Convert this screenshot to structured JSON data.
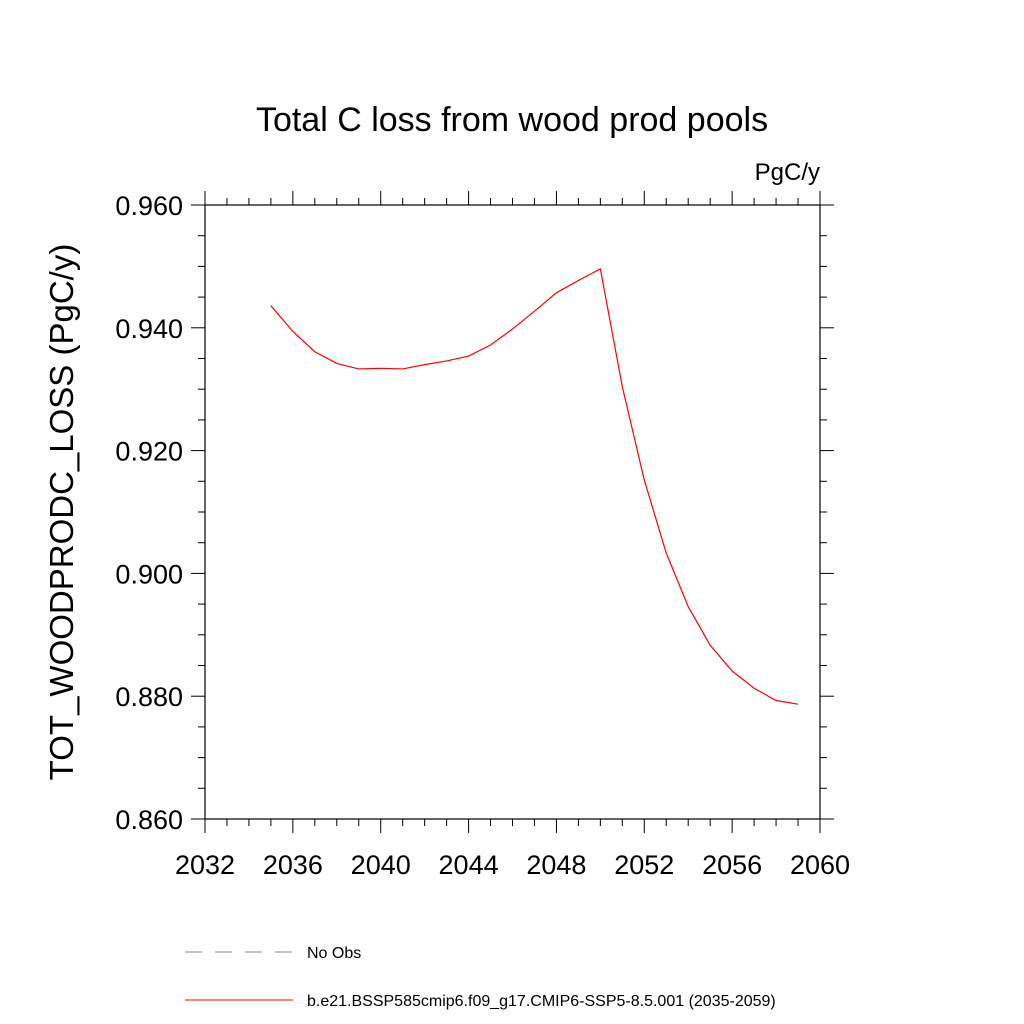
{
  "chart_data": {
    "type": "line",
    "title": "Total C loss from wood prod pools",
    "units_label": "PgC/y",
    "ylabel": "TOT_WOODPRODC_LOSS  (PgC/y)",
    "xlabel": "",
    "xlim": [
      2032,
      2060
    ],
    "ylim": [
      0.86,
      0.96
    ],
    "x_ticks": [
      "2032",
      "2036",
      "2040",
      "2044",
      "2048",
      "2052",
      "2056",
      "2060"
    ],
    "y_ticks": [
      "0.860",
      "0.880",
      "0.900",
      "0.920",
      "0.940",
      "0.960"
    ],
    "series": [
      {
        "name": "b.e21.BSSP585cmip6.f09_g17.CMIP6-SSP5-8.5.001 (2035-2059)",
        "color": "#ff0000",
        "x": [
          2035,
          2036,
          2037,
          2038,
          2039,
          2040,
          2041,
          2042,
          2043,
          2044,
          2045,
          2046,
          2047,
          2048,
          2049,
          2050,
          2051,
          2052,
          2053,
          2054,
          2055,
          2056,
          2057,
          2058,
          2059
        ],
        "y": [
          0.9436,
          0.9394,
          0.9361,
          0.9342,
          0.9333,
          0.9334,
          0.9333,
          0.934,
          0.9346,
          0.9354,
          0.9372,
          0.9398,
          0.9427,
          0.9457,
          0.9477,
          0.9496,
          0.9304,
          0.9152,
          0.9033,
          0.8946,
          0.8883,
          0.8841,
          0.8813,
          0.8793,
          0.8787
        ]
      }
    ],
    "legend": [
      {
        "label": "No Obs",
        "style": "dashed",
        "color": "#8080d0"
      },
      {
        "label": "b.e21.BSSP585cmip6.f09_g17.CMIP6-SSP5-8.5.001 (2035-2059)",
        "style": "solid",
        "color": "#ff0000"
      }
    ],
    "legend_position": "bottom",
    "grid": false
  }
}
